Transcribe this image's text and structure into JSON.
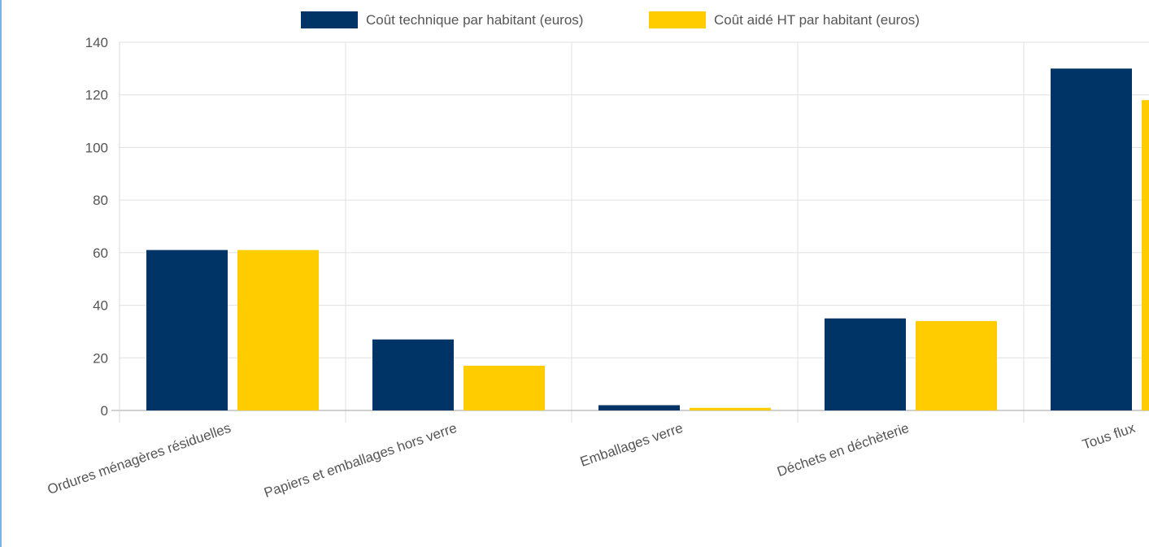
{
  "chart_data": {
    "type": "bar",
    "categories": [
      "Ordures ménagères résiduelles",
      "Papiers et emballages hors verre",
      "Emballages verre",
      "Déchets en déchèterie",
      "Tous flux"
    ],
    "series": [
      {
        "name": "Coût technique par habitant (euros)",
        "color": "#003366",
        "values": [
          61,
          27,
          2,
          35,
          130
        ]
      },
      {
        "name": "Coût aidé HT par habitant (euros)",
        "color": "#ffcc00",
        "values": [
          61,
          17,
          1,
          34,
          118
        ]
      }
    ],
    "title": "",
    "xlabel": "",
    "ylabel": "",
    "ylim": [
      0,
      140
    ],
    "yticks": [
      0,
      20,
      40,
      60,
      80,
      100,
      120,
      140
    ],
    "grid": true,
    "legend_position": "top"
  }
}
